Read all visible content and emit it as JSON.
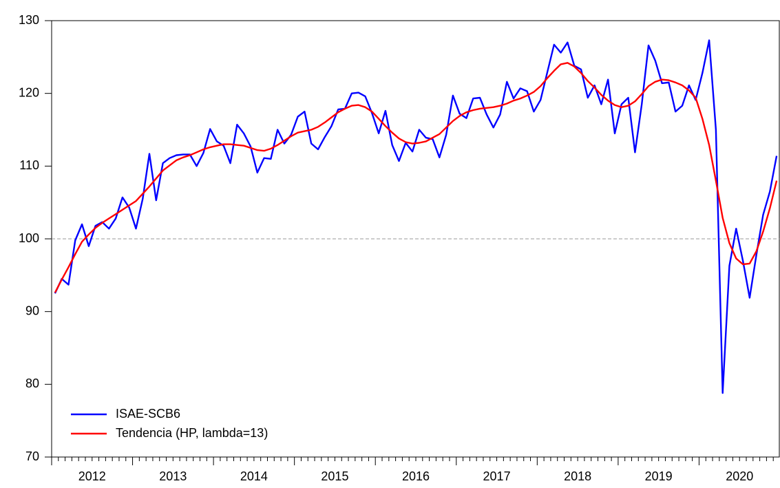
{
  "chart_data": {
    "type": "line",
    "categories": [
      null,
      null,
      null,
      null,
      null,
      "2012",
      null,
      null,
      null,
      null,
      null,
      null,
      null,
      null,
      null,
      null,
      null,
      "2013",
      null,
      null,
      null,
      null,
      null,
      null,
      null,
      null,
      null,
      null,
      null,
      "2014",
      null,
      null,
      null,
      null,
      null,
      null,
      null,
      null,
      null,
      null,
      null,
      "2015",
      null,
      null,
      null,
      null,
      null,
      null,
      null,
      null,
      null,
      null,
      null,
      "2016",
      null,
      null,
      null,
      null,
      null,
      null,
      null,
      null,
      null,
      null,
      null,
      "2017",
      null,
      null,
      null,
      null,
      null,
      null,
      null,
      null,
      null,
      null,
      null,
      "2018",
      null,
      null,
      null,
      null,
      null,
      null,
      null,
      null,
      null,
      null,
      null,
      "2019",
      null,
      null,
      null,
      null,
      null,
      null,
      null,
      null,
      null,
      null,
      null,
      "2020",
      null,
      null,
      null,
      null,
      null,
      null
    ],
    "series": [
      {
        "name": "ISAE-SCB6",
        "color": "#0000ff",
        "values": [
          92.5,
          94.5,
          93.7,
          99.8,
          102,
          99,
          101.8,
          102.3,
          101.4,
          102.8,
          105.7,
          104.3,
          101.4,
          105.5,
          111.7,
          105.3,
          110.4,
          111.1,
          111.5,
          111.6,
          111.6,
          110,
          111.8,
          115.1,
          113.4,
          112.8,
          110.4,
          115.7,
          114.5,
          112.7,
          109.1,
          111.1,
          111,
          115,
          113.1,
          114.3,
          116.8,
          117.5,
          113.1,
          112.3,
          114,
          115.5,
          117.8,
          117.9,
          120,
          120.1,
          119.6,
          117.3,
          114.5,
          117.6,
          112.9,
          110.7,
          113.2,
          112,
          115,
          113.9,
          113.7,
          111.2,
          114.3,
          119.7,
          117.2,
          116.6,
          119.3,
          119.4,
          117.1,
          115.3,
          117.1,
          121.6,
          119.3,
          120.7,
          120.3,
          117.5,
          119.1,
          122.9,
          126.7,
          125.6,
          127,
          123.8,
          123.3,
          119.4,
          121.1,
          118.5,
          121.9,
          114.5,
          118.5,
          119.4,
          111.9,
          118.5,
          126.6,
          124.5,
          121.4,
          121.5,
          117.5,
          118.3,
          121.1,
          119.1,
          122.8,
          127.3,
          115,
          78.8,
          96.3,
          101.4,
          97,
          91.9,
          97.8,
          103.3,
          106.5,
          111.4
        ]
      },
      {
        "name": "Tendencia (HP, lambda=13)",
        "color": "#ff0000",
        "values": [
          92.6,
          94.4,
          96.1,
          97.9,
          99.6,
          100.6,
          101.5,
          102.2,
          102.8,
          103.4,
          104,
          104.6,
          105.2,
          106.2,
          107.2,
          108.3,
          109.4,
          110.1,
          110.8,
          111.2,
          111.5,
          111.9,
          112.3,
          112.6,
          112.8,
          113,
          113,
          112.9,
          112.8,
          112.5,
          112.2,
          112.1,
          112.4,
          112.9,
          113.5,
          114.1,
          114.6,
          114.8,
          115,
          115.4,
          116,
          116.7,
          117.4,
          117.9,
          118.3,
          118.4,
          118.1,
          117.5,
          116.5,
          115.5,
          114.6,
          113.8,
          113.3,
          113.1,
          113.2,
          113.4,
          113.9,
          114.4,
          115.3,
          116.2,
          116.9,
          117.4,
          117.7,
          117.9,
          118,
          118.1,
          118.3,
          118.6,
          119,
          119.3,
          119.7,
          120.2,
          121,
          122.1,
          123.1,
          124,
          124.2,
          123.7,
          122.8,
          121.7,
          120.8,
          119.8,
          119,
          118.4,
          118.1,
          118.3,
          118.9,
          119.9,
          121,
          121.6,
          121.9,
          121.8,
          121.5,
          121.1,
          120.4,
          119.4,
          116.5,
          112.9,
          108,
          102.9,
          99.4,
          97.3,
          96.5,
          96.6,
          98.3,
          101,
          104.2,
          108
        ]
      }
    ],
    "ylim": [
      70,
      130
    ],
    "yticks": [
      70,
      80,
      90,
      100,
      110,
      120,
      130
    ],
    "reference_line": 100,
    "legend": "lower left"
  }
}
